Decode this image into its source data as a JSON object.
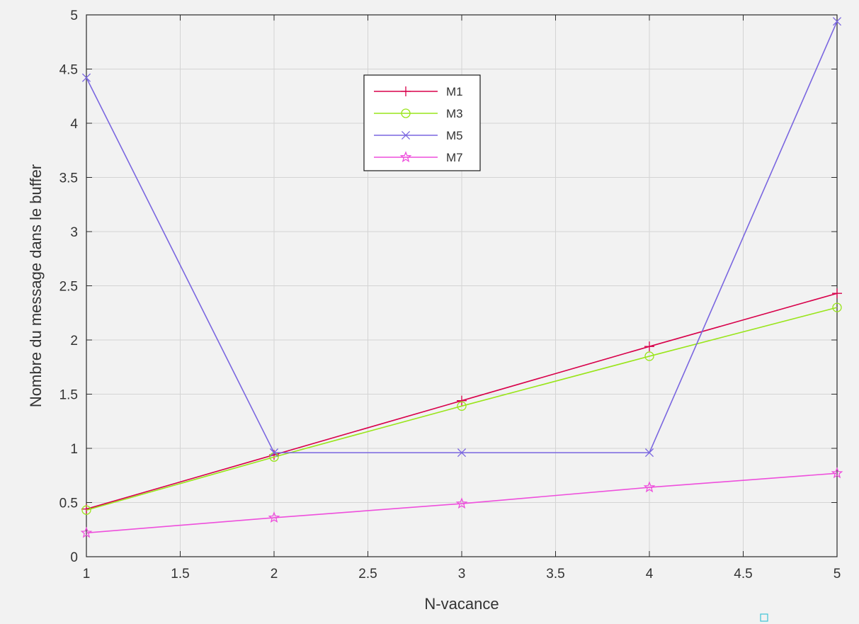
{
  "chart_data": {
    "type": "line",
    "title": "",
    "xlabel": "N-vacance",
    "ylabel": "Nombre du message dans le buffer",
    "xlim": [
      1,
      5
    ],
    "ylim": [
      0,
      5
    ],
    "xticks": [
      "1",
      "1.5",
      "2",
      "2.5",
      "3",
      "3.5",
      "4",
      "4.5",
      "5"
    ],
    "yticks": [
      "0",
      "0.5",
      "1",
      "1.5",
      "2",
      "2.5",
      "3",
      "3.5",
      "4",
      "4.5",
      "5"
    ],
    "grid": true,
    "legend_position": "upper-center",
    "x": [
      1,
      2,
      3,
      4,
      5
    ],
    "series": [
      {
        "name": "M1",
        "color": "#d8004a",
        "marker": "plus",
        "values": [
          0.44,
          0.94,
          1.44,
          1.94,
          2.43
        ]
      },
      {
        "name": "M3",
        "color": "#99e51a",
        "marker": "circle",
        "values": [
          0.43,
          0.92,
          1.39,
          1.85,
          2.3
        ]
      },
      {
        "name": "M5",
        "color": "#7a66e0",
        "marker": "x",
        "values": [
          4.42,
          0.96,
          0.96,
          0.96,
          4.94
        ]
      },
      {
        "name": "M7",
        "color": "#ee4fdc",
        "marker": "star",
        "values": [
          0.22,
          0.36,
          0.49,
          0.64,
          0.77
        ]
      }
    ]
  }
}
